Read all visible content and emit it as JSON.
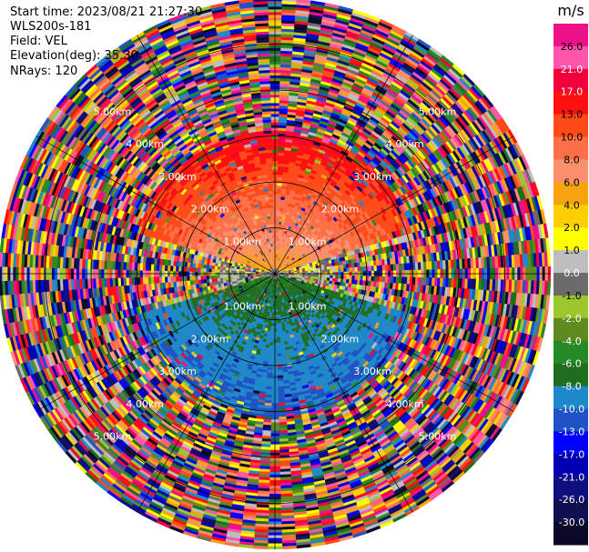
{
  "header": {
    "start_time": "Start time: 2023/08/21 21:27:30",
    "instrument": "WLS200s-181",
    "field": "Field: VEL",
    "elevation": "Elevation(deg): 35.30",
    "nrays": "NRays: 120"
  },
  "chart_data": {
    "type": "heatmap",
    "projection": "polar-ppi",
    "field": "VEL",
    "elevation_deg": 35.3,
    "n_rays": 120,
    "range_rings_km": [
      1.0,
      2.0,
      3.0,
      4.0,
      5.0
    ],
    "ring_label_text": [
      "1.00km",
      "2.00km",
      "3.00km",
      "4.00km",
      "5.00km"
    ],
    "max_range_km": 6.0,
    "colorbar": {
      "unit": "m/s",
      "tick_labels": [
        "26.0",
        "21.0",
        "17.0",
        "13.0",
        "10.0",
        "8.0",
        "6.0",
        "4.0",
        "2.0",
        "1.0",
        "0.0",
        "-1.0",
        "-2.0",
        "-4.0",
        "-6.0",
        "-8.0",
        "-10.0",
        "-13.0",
        "-17.0",
        "-21.0",
        "-26.0",
        "-30.0"
      ],
      "colors": [
        "#ee1088",
        "#ff55aa",
        "#f2003b",
        "#ff0f0f",
        "#ff4a18",
        "#fd6f47",
        "#fc8f6c",
        "#f7a30f",
        "#fecf00",
        "#ffff00",
        "#bdbdbd",
        "#6b6b6b",
        "#9bc62c",
        "#5f8a1e",
        "#258a25",
        "#1e6e1e",
        "#1e88c8",
        "#1f52c6",
        "#0000ff",
        "#0000b0",
        "#0f0f80",
        "#101050",
        "#0a0a28"
      ]
    },
    "velocity_pattern": {
      "north_sector": "positive (receding) 2 to 10 m/s",
      "south_sector": "negative (approaching) -2 to -10 m/s",
      "near_zero_band": "east-west axis",
      "outer_ranges": "noise"
    }
  }
}
